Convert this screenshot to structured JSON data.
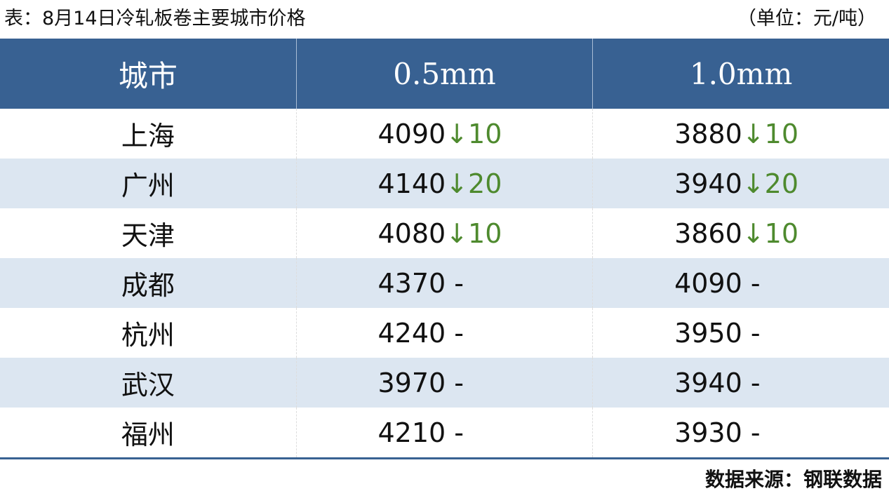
{
  "title": "表：8月14日冷轧板卷主要城市价格",
  "unit": "（单位：元/吨）",
  "source": "数据来源：钢联数据",
  "colors": {
    "header": "#386192",
    "alt_row": "#dce6f1",
    "down": "#4e8a2e"
  },
  "chart_data": {
    "type": "table",
    "columns": [
      "城市",
      "0.5mm",
      "1.0mm"
    ],
    "rows": [
      {
        "city": "上海",
        "p05": "4090",
        "c05": "↓10",
        "p10": "3880",
        "c10": "↓10"
      },
      {
        "city": "广州",
        "p05": "4140",
        "c05": "↓20",
        "p10": "3940",
        "c10": "↓20"
      },
      {
        "city": "天津",
        "p05": "4080",
        "c05": "↓10",
        "p10": "3860",
        "c10": "↓10"
      },
      {
        "city": "成都",
        "p05": "4370",
        "c05": " -",
        "p10": "4090",
        "c10": " -"
      },
      {
        "city": "杭州",
        "p05": "4240",
        "c05": " -",
        "p10": "3950",
        "c10": " -"
      },
      {
        "city": "武汉",
        "p05": "3970",
        "c05": " -",
        "p10": "3940",
        "c10": " -"
      },
      {
        "city": "福州",
        "p05": "4210",
        "c05": " -",
        "p10": "3930",
        "c10": " -"
      }
    ]
  }
}
